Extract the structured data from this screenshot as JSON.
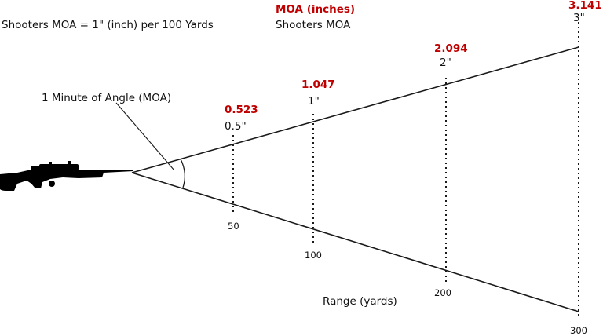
{
  "header": {
    "definition": "Shooters MOA = 1\" (inch) per 100 Yards",
    "legend_red": "MOA (inches)",
    "legend_black": "Shooters MOA"
  },
  "angle_label": "1 Minute of Angle (MOA)",
  "axis_label": "Range (yards)",
  "markers": [
    {
      "range": "50",
      "moa": "0.523",
      "shooters": "0.5\""
    },
    {
      "range": "100",
      "moa": "1.047",
      "shooters": "1\""
    },
    {
      "range": "200",
      "moa": "2.094",
      "shooters": "2\""
    },
    {
      "range": "300",
      "moa": "3.141",
      "shooters": "3\""
    }
  ],
  "colors": {
    "moa": "#c00000",
    "text": "#111111",
    "line": "#1a1a1a"
  },
  "icons": [
    "rifle-icon"
  ]
}
